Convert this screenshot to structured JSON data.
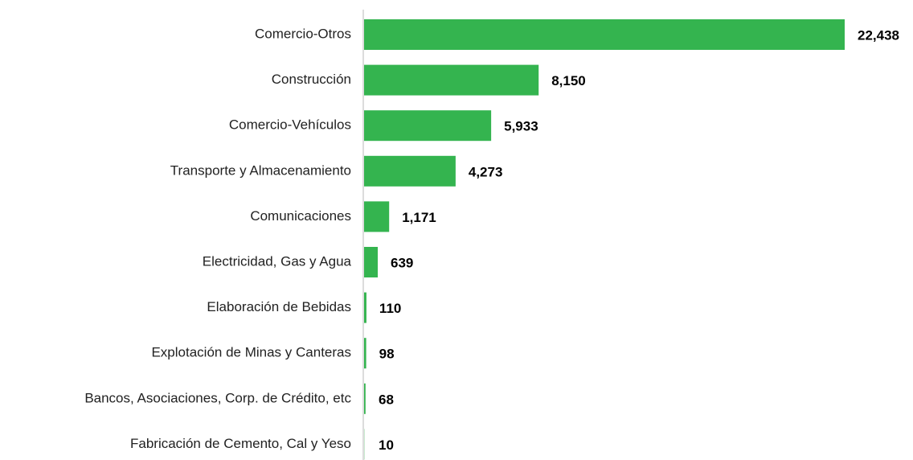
{
  "chart_data": {
    "type": "bar",
    "orientation": "horizontal",
    "categories": [
      "Comercio-Otros",
      "Construcción",
      "Comercio-Vehículos",
      "Transporte y Almacenamiento",
      "Comunicaciones",
      "Electricidad, Gas y Agua",
      "Elaboración de Bebidas",
      "Explotación de Minas y Canteras",
      "Bancos, Asociaciones, Corp. de Crédito, etc",
      "Fabricación de Cemento, Cal y Yeso"
    ],
    "values": [
      22438,
      8150,
      5933,
      4273,
      1171,
      639,
      110,
      98,
      68,
      10
    ],
    "value_labels": [
      "22,438",
      "8,150",
      "5,933",
      "4,273",
      "1,171",
      "639",
      "110",
      "98",
      "68",
      "10"
    ],
    "color": "#34b44f"
  }
}
